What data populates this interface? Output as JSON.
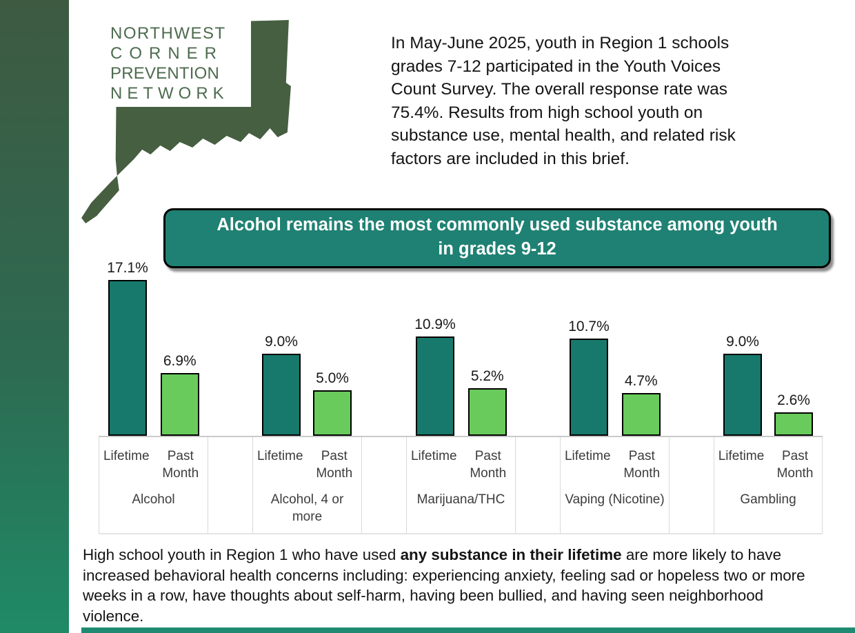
{
  "logo": {
    "lines": [
      "NORTHWEST",
      "CORNER",
      "PREVENTION",
      "NETWORK"
    ]
  },
  "intro": {
    "lines": [
      "In May-June 2025, youth in Region 1 schools",
      "grades 7-12 participated in the Youth Voices",
      "Count Survey. The overall response rate was",
      "75.4%. Results from high school youth on",
      "substance use, mental health, and related risk",
      "factors are included in this brief."
    ]
  },
  "banner": {
    "lines": [
      "Alcohol remains the most commonly used substance among youth",
      "in grades 9-12"
    ]
  },
  "chart_data": {
    "type": "bar",
    "categories": [
      "Alcohol",
      "Alcohol, 4 or more",
      "Marijuana/THC",
      "Vaping (Nicotine)",
      "Gambling"
    ],
    "series": [
      {
        "name": "Lifetime",
        "values": [
          17.1,
          9.0,
          10.9,
          10.7,
          9.0
        ],
        "color": "#17796b"
      },
      {
        "name": "Past Month",
        "values": [
          6.9,
          5.0,
          5.2,
          4.7,
          2.6
        ],
        "color": "#69cb5c"
      }
    ],
    "value_suffix": "%",
    "data_labels": true,
    "ylim": [
      0,
      18
    ],
    "grid": false,
    "legend": "none (series named in category tick labels)"
  },
  "footer": {
    "pre": "High school youth in Region 1 who have used ",
    "bold": "any substance in their lifetime",
    "post": " are more likely to have increased behavioral health concerns including: experiencing anxiety, feeling sad or hopeless two or more weeks in a row, have thoughts about self-harm, having been bullied, and having seen neighborhood violence."
  },
  "colors": {
    "bar_lifetime": "#17796b",
    "bar_past_month": "#69cb5c",
    "banner_teal": "#1f8173",
    "logo_map_green": "#465f41",
    "logo_text_green": "#4d6b4e",
    "strip_gradient_top": "#3e5a41",
    "strip_gradient_bottom": "#1f8a66",
    "bottom_bar_teal": "#1f8a72"
  }
}
